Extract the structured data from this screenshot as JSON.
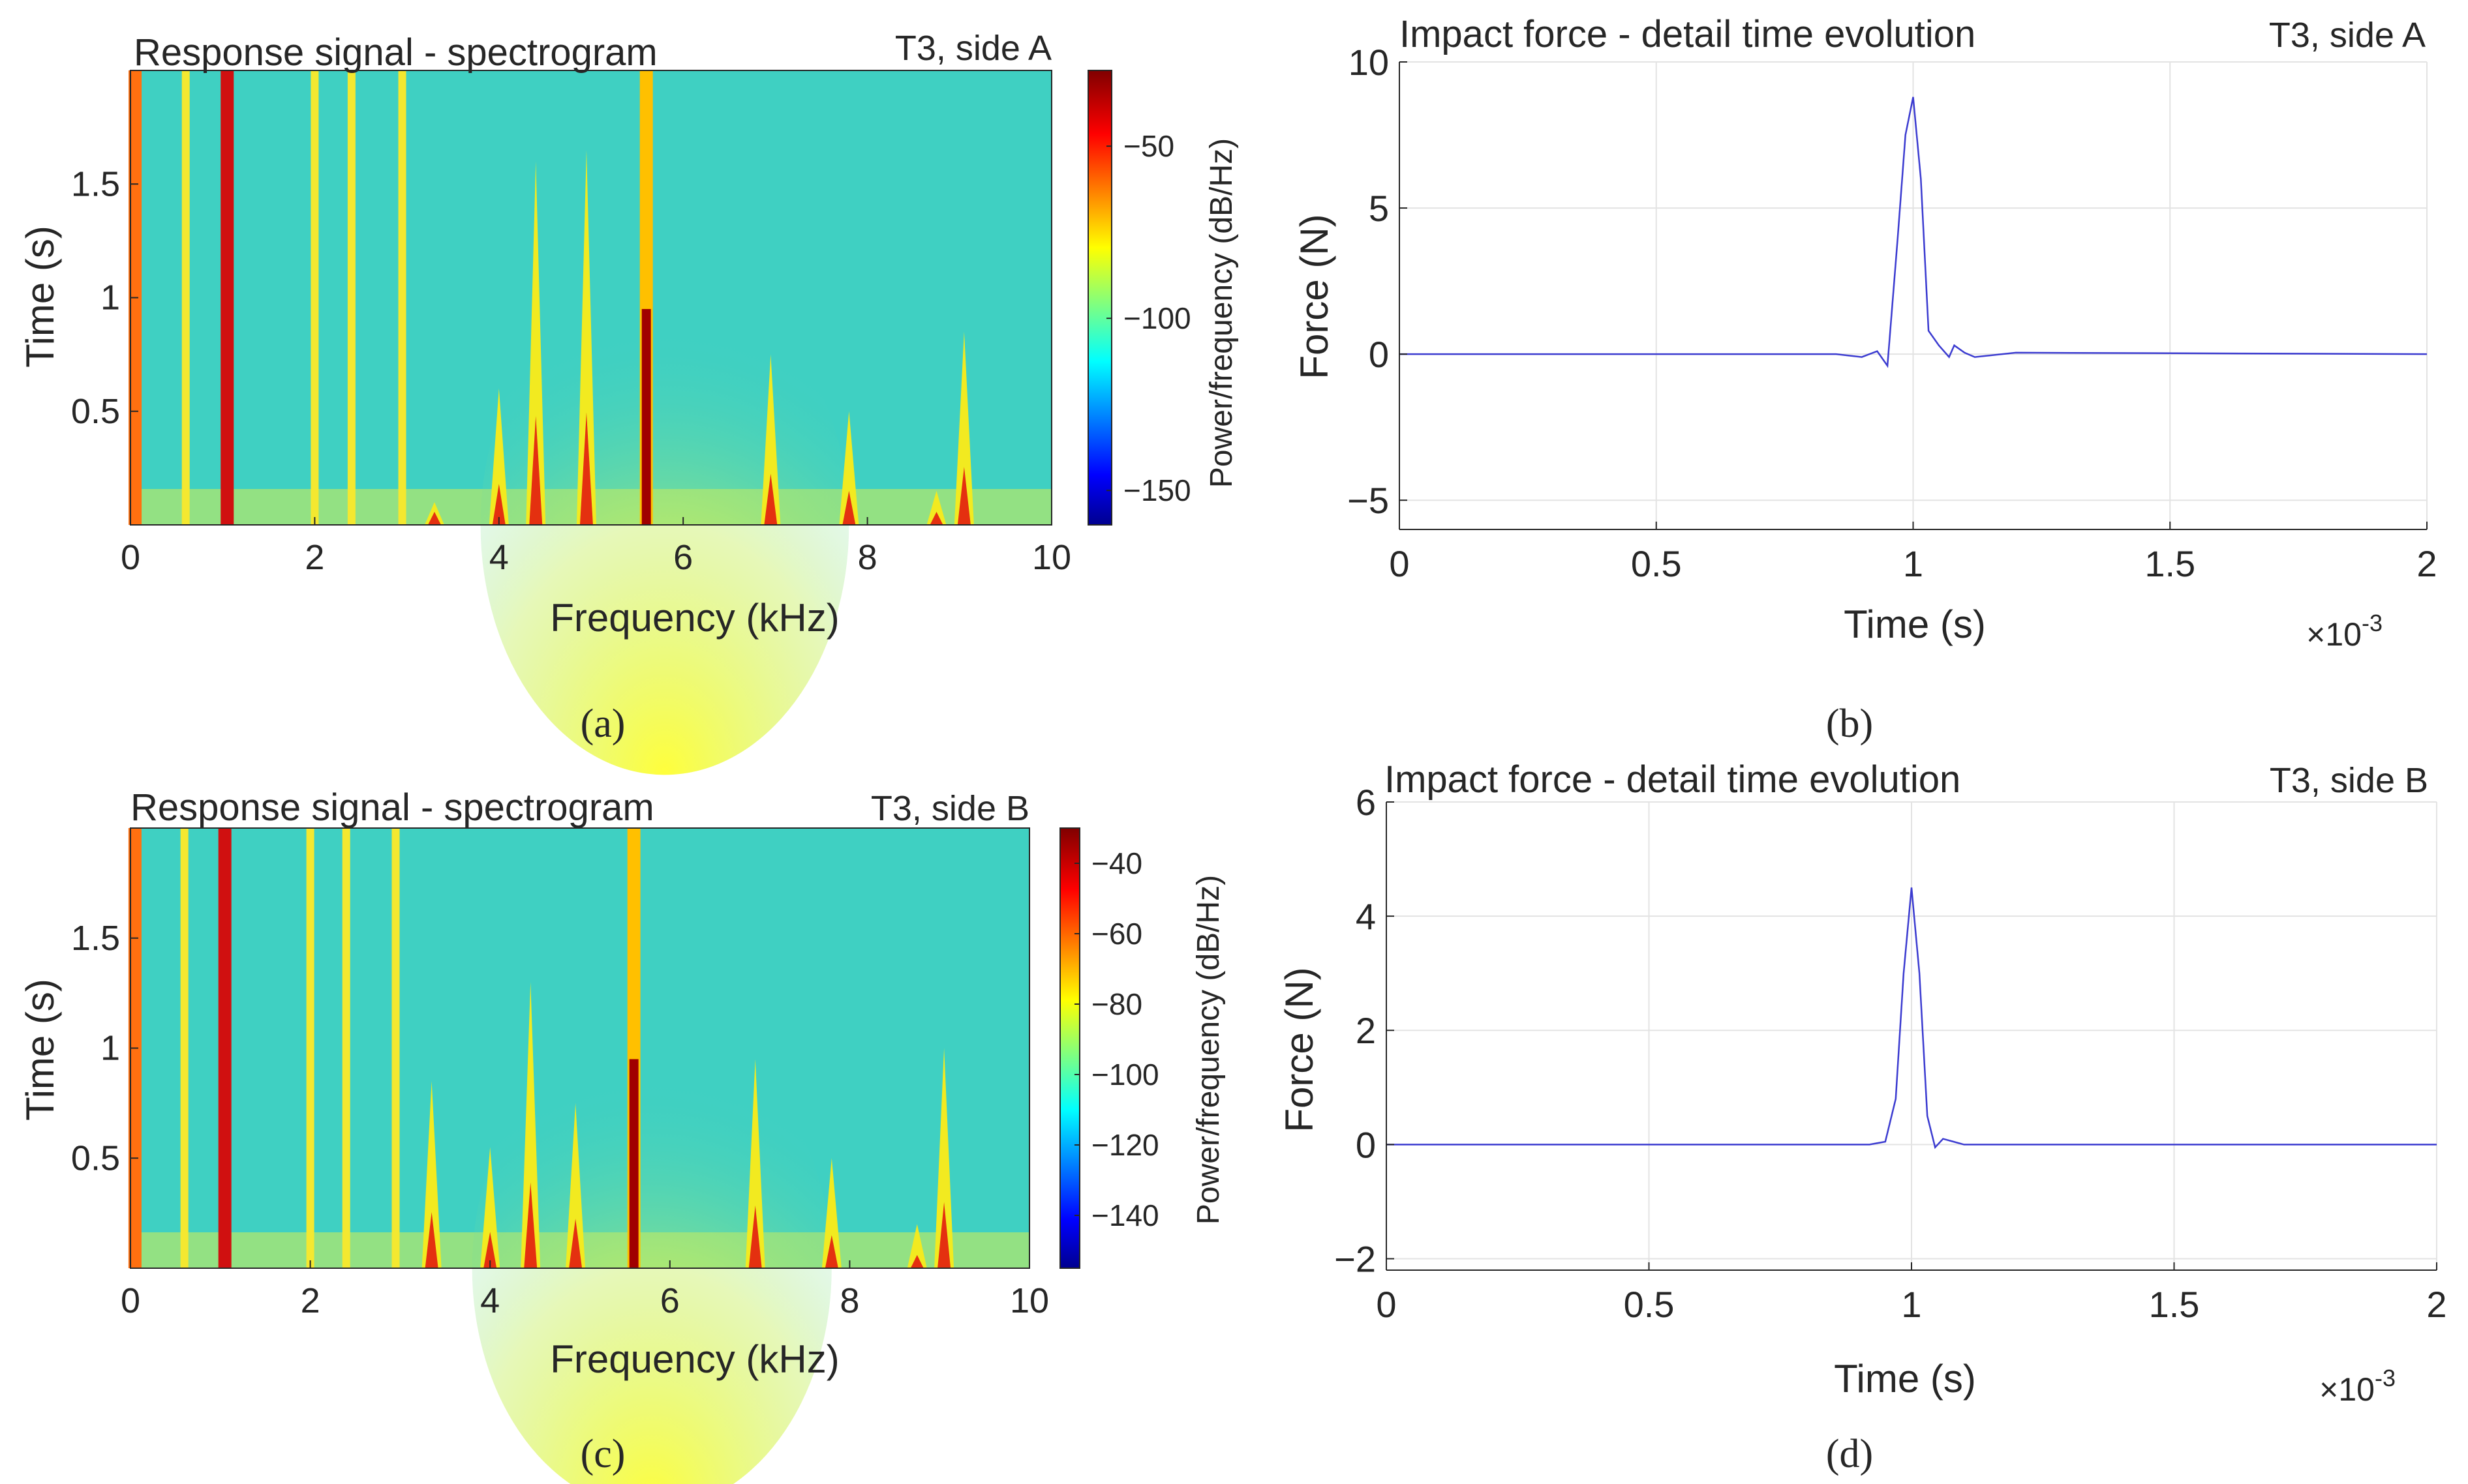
{
  "colors": {
    "trace": "#3b3bd0",
    "text": "#262626",
    "grid": "#e3e3e3",
    "spectrogram_background": "#3fd0c2"
  },
  "chart_data": [
    {
      "panel": "(a)",
      "type": "heatmap",
      "title": "Response signal - spectrogram",
      "annotation": "T3, side A",
      "xlabel": "Frequency (kHz)",
      "ylabel": "Time (s)",
      "xlim": [
        0,
        10
      ],
      "ylim": [
        0,
        2
      ],
      "xticks": [
        "0",
        "2",
        "4",
        "6",
        "8",
        "10"
      ],
      "yticks": [
        "0.5",
        "1",
        "1.5"
      ],
      "colorbar": {
        "label": "Power/frequency (dB/Hz)",
        "range": [
          -160,
          -28
        ],
        "ticks": [
          "-50",
          "-100",
          "-150"
        ]
      },
      "persistent_lines_khz": [
        0.05,
        0.6,
        1.05,
        2.0,
        2.4,
        2.95,
        5.6
      ],
      "decaying_peaks": [
        {
          "freq_khz": 3.3,
          "decay_time_s": 0.1
        },
        {
          "freq_khz": 4.0,
          "decay_time_s": 0.6
        },
        {
          "freq_khz": 4.4,
          "decay_time_s": 1.6
        },
        {
          "freq_khz": 4.95,
          "decay_time_s": 1.65
        },
        {
          "freq_khz": 6.95,
          "decay_time_s": 0.75
        },
        {
          "freq_khz": 7.8,
          "decay_time_s": 0.5
        },
        {
          "freq_khz": 8.75,
          "decay_time_s": 0.15
        },
        {
          "freq_khz": 9.05,
          "decay_time_s": 0.85
        }
      ]
    },
    {
      "panel": "(b)",
      "type": "line",
      "title": "Impact force - detail time evolution",
      "annotation": "T3, side A",
      "xlabel": "Time (s)",
      "ylabel": "Force (N)",
      "x_multiplier": "×10",
      "x_multiplier_exp": "-3",
      "xlim": [
        0,
        2
      ],
      "ylim": [
        -6,
        10
      ],
      "xticks": [
        "0",
        "0.5",
        "1",
        "1.5",
        "2"
      ],
      "yticks": [
        "-5",
        "0",
        "5",
        "10"
      ],
      "grid": true,
      "series": [
        {
          "name": "force",
          "x": [
            0,
            0.85,
            0.9,
            0.93,
            0.95,
            0.97,
            0.985,
            1.0,
            1.015,
            1.03,
            1.05,
            1.07,
            1.08,
            1.1,
            1.12,
            1.2,
            2.0
          ],
          "y": [
            0,
            0,
            -0.1,
            0.1,
            -0.4,
            4.0,
            7.5,
            8.8,
            6.0,
            0.8,
            0.3,
            -0.1,
            0.3,
            0.05,
            -0.1,
            0.05,
            0
          ]
        }
      ]
    },
    {
      "panel": "(c)",
      "type": "heatmap",
      "title": "Response signal - spectrogram",
      "annotation": "T3, side B",
      "xlabel": "Frequency (kHz)",
      "ylabel": "Time (s)",
      "xlim": [
        0,
        10
      ],
      "ylim": [
        0,
        2
      ],
      "xticks": [
        "0",
        "2",
        "4",
        "6",
        "8",
        "10"
      ],
      "yticks": [
        "0.5",
        "1",
        "1.5"
      ],
      "colorbar": {
        "label": "Power/frequency (dB/Hz)",
        "range": [
          -155,
          -30
        ],
        "ticks": [
          "-40",
          "-60",
          "-80",
          "-100",
          "-120",
          "-140"
        ]
      },
      "persistent_lines_khz": [
        0.05,
        0.6,
        1.05,
        2.0,
        2.4,
        2.95,
        5.6
      ],
      "decaying_peaks": [
        {
          "freq_khz": 3.35,
          "decay_time_s": 0.85
        },
        {
          "freq_khz": 4.0,
          "decay_time_s": 0.55
        },
        {
          "freq_khz": 4.45,
          "decay_time_s": 1.3
        },
        {
          "freq_khz": 4.95,
          "decay_time_s": 0.75
        },
        {
          "freq_khz": 6.95,
          "decay_time_s": 0.95
        },
        {
          "freq_khz": 7.8,
          "decay_time_s": 0.5
        },
        {
          "freq_khz": 8.75,
          "decay_time_s": 0.2
        },
        {
          "freq_khz": 9.05,
          "decay_time_s": 1.0
        }
      ]
    },
    {
      "panel": "(d)",
      "type": "line",
      "title": "Impact force - detail time evolution",
      "annotation": "T3, side B",
      "xlabel": "Time (s)",
      "ylabel": "Force (N)",
      "x_multiplier": "×10",
      "x_multiplier_exp": "-3",
      "xlim": [
        0,
        2
      ],
      "ylim": [
        -2.2,
        6
      ],
      "xticks": [
        "0",
        "0.5",
        "1",
        "1.5",
        "2"
      ],
      "yticks": [
        "-2",
        "0",
        "2",
        "4",
        "6"
      ],
      "grid": true,
      "series": [
        {
          "name": "force",
          "x": [
            0,
            0.88,
            0.92,
            0.95,
            0.97,
            0.985,
            1.0,
            1.015,
            1.03,
            1.045,
            1.06,
            1.08,
            1.1,
            1.2,
            2.0
          ],
          "y": [
            0,
            0,
            0,
            0.05,
            0.8,
            3.0,
            4.5,
            3.0,
            0.5,
            -0.05,
            0.1,
            0.05,
            0,
            0,
            0
          ]
        }
      ]
    }
  ]
}
